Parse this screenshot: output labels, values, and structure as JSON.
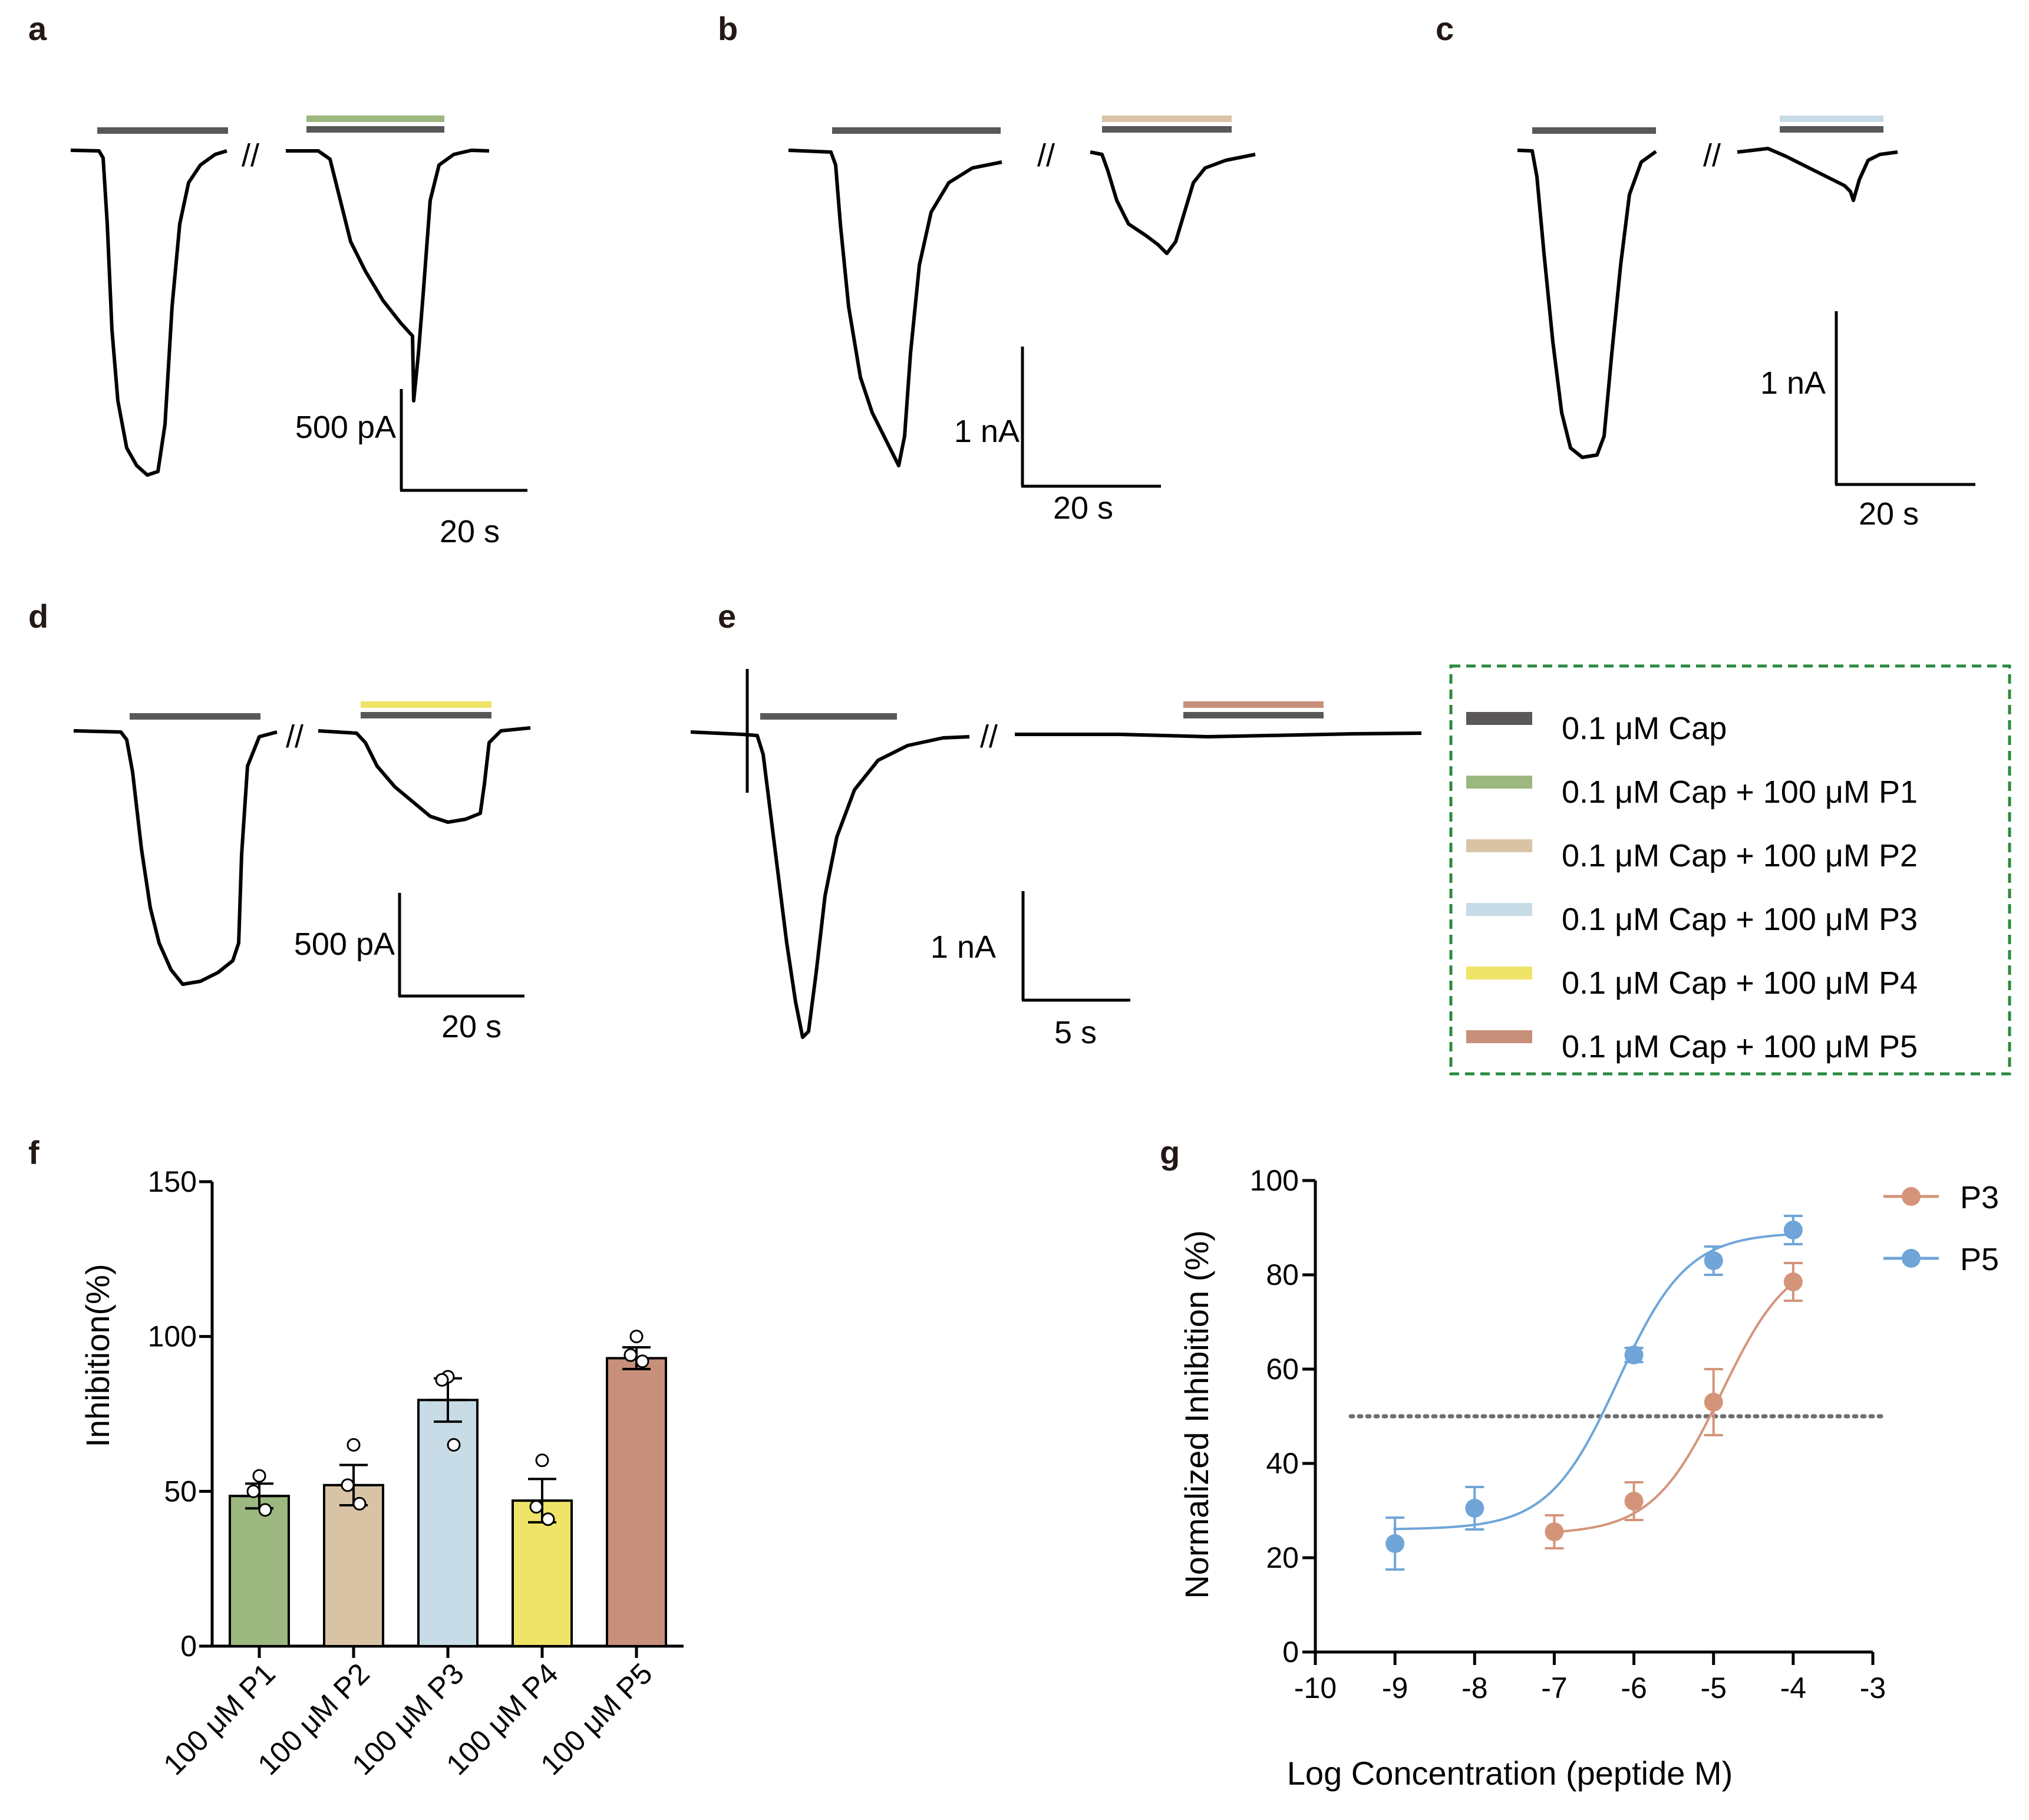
{
  "colors": {
    "cap": "#595757",
    "P1": "#9cb77f",
    "P2": "#d8c4a5",
    "P3": "#c7dce6",
    "P4": "#efe467",
    "P5": "#c8907a",
    "P3_curve": "#d4947a",
    "P5_curve": "#6fa5d8",
    "legend_border": "#2b8a3e",
    "dotted_line": "#6e6e6e"
  },
  "panels": {
    "a": {
      "label": "a",
      "scale_current": "500 pA",
      "scale_time": "20 s",
      "break_mark": "//"
    },
    "b": {
      "label": "b",
      "scale_current": "1 nA",
      "scale_time": "20 s",
      "break_mark": "//"
    },
    "c": {
      "label": "c",
      "scale_current": "1 nA",
      "scale_time": "20 s",
      "break_mark": "//"
    },
    "d": {
      "label": "d",
      "scale_current": "500 pA",
      "scale_time": "20 s",
      "break_mark": "//"
    },
    "e": {
      "label": "e",
      "scale_current": "1 nA",
      "scale_time": "5 s",
      "break_mark": "//"
    },
    "f": {
      "label": "f"
    },
    "g": {
      "label": "g"
    }
  },
  "legend": {
    "items": [
      {
        "label": "0.1 μM Cap",
        "color_key": "cap"
      },
      {
        "label": "0.1 μM Cap + 100 μM P1",
        "color_key": "P1"
      },
      {
        "label": "0.1 μM Cap + 100 μM P2",
        "color_key": "P2"
      },
      {
        "label": "0.1 μM Cap + 100 μM P3",
        "color_key": "P3"
      },
      {
        "label": "0.1 μM Cap + 100 μM P4",
        "color_key": "P4"
      },
      {
        "label": "0.1 μM Cap + 100 μM P5",
        "color_key": "P5"
      }
    ]
  },
  "chart_data": [
    {
      "panel": "f",
      "type": "bar",
      "title": "",
      "xlabel": "",
      "ylabel": "Inhibition(%)",
      "ylim": [
        0,
        150
      ],
      "yticks": [
        0,
        50,
        100,
        150
      ],
      "categories": [
        "100 μM P1",
        "100 μM P2",
        "100 μM P3",
        "100 μM P4",
        "100 μM P5"
      ],
      "values": [
        48.5,
        52,
        79.5,
        47,
        93
      ],
      "errors": [
        4,
        6.5,
        7,
        7,
        3.5
      ],
      "points": [
        [
          55,
          50,
          44
        ],
        [
          65,
          52,
          46
        ],
        [
          87,
          86,
          65
        ],
        [
          60,
          45,
          41
        ],
        [
          100,
          94,
          92
        ]
      ],
      "bar_colors": [
        "#9cb77f",
        "#d8c4a5",
        "#c7dce6",
        "#efe467",
        "#c8907a"
      ]
    },
    {
      "panel": "g",
      "type": "scatter",
      "title": "",
      "xlabel": "Log Concentration (peptide M)",
      "ylabel": "Normalized Inhibition (%)",
      "xlim": [
        -10,
        -3
      ],
      "ylim": [
        0,
        100
      ],
      "xticks": [
        -10,
        -9,
        -8,
        -7,
        -6,
        -5,
        -4,
        -3
      ],
      "yticks": [
        0,
        20,
        40,
        60,
        80,
        100
      ],
      "reference_line_y": 50,
      "series": [
        {
          "name": "P3",
          "x": [
            -7,
            -6,
            -5,
            -4
          ],
          "y": [
            25.5,
            32,
            53,
            78.5
          ],
          "err": [
            3.5,
            4,
            7,
            4
          ],
          "fit": {
            "bottom": 25,
            "top": 85,
            "logEC50": -4.9,
            "hill": 1.0
          }
        },
        {
          "name": "P5",
          "x": [
            -9,
            -8,
            -6,
            -5,
            -4
          ],
          "y": [
            23,
            30.5,
            63,
            83,
            89.5
          ],
          "err": [
            5.5,
            4.5,
            1.5,
            3,
            3
          ],
          "fit": {
            "bottom": 26,
            "top": 89,
            "logEC50": -6.2,
            "hill": 1.0
          }
        }
      ]
    }
  ]
}
